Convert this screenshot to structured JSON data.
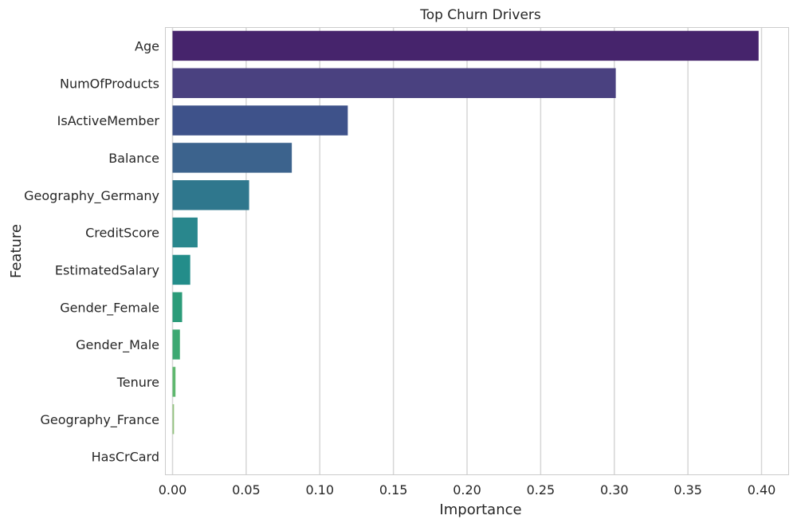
{
  "chart_data": {
    "type": "bar",
    "orientation": "horizontal",
    "title": "Top Churn Drivers",
    "xlabel": "Importance",
    "ylabel": "Feature",
    "xlim": [
      0,
      0.42
    ],
    "xticks": [
      "0.00",
      "0.05",
      "0.10",
      "0.15",
      "0.20",
      "0.25",
      "0.30",
      "0.35",
      "0.40"
    ],
    "xtick_values": [
      0,
      0.05,
      0.1,
      0.15,
      0.2,
      0.25,
      0.3,
      0.35,
      0.4
    ],
    "grid": true,
    "categories": [
      "Age",
      "NumOfProducts",
      "IsActiveMember",
      "Balance",
      "Geography_Germany",
      "CreditScore",
      "EstimatedSalary",
      "Gender_Female",
      "Gender_Male",
      "Tenure",
      "Geography_France",
      "HasCrCard"
    ],
    "values": [
      0.398,
      0.301,
      0.119,
      0.081,
      0.052,
      0.017,
      0.012,
      0.0065,
      0.005,
      0.002,
      0.001,
      0.0
    ],
    "colors": [
      "#46246c",
      "#4a4180",
      "#3e528a",
      "#3c638d",
      "#2f778d",
      "#29878d",
      "#238d8a",
      "#2b9b79",
      "#3da872",
      "#5eb76e",
      "#93c37e",
      "#bcd38e"
    ]
  }
}
